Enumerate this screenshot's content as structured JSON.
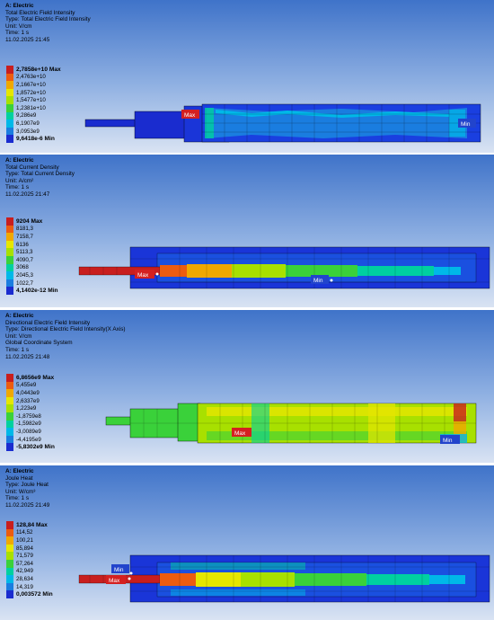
{
  "panels": [
    {
      "title": "A: Electric",
      "lines": [
        "Total Electric Field Intensity",
        "Type: Total Electric Field Intensity",
        "Unit: V/cm",
        "Time: 1 s",
        "11.02.2025 21:45"
      ],
      "legend": [
        "2,7858e+10 Max",
        "2,4763e+10",
        "2,1667e+10",
        "1,8572e+10",
        "1,5477e+10",
        "1,2381e+10",
        "9,286e9",
        "6,1907e9",
        "3,0953e9",
        "9,6418e-6 Min"
      ],
      "max_label": "Max",
      "min_label": "Min"
    },
    {
      "title": "A: Electric",
      "lines": [
        "Total Current Density",
        "Type: Total Current Density",
        "Unit: A/cm²",
        "Time: 1 s",
        "11.02.2025 21:47"
      ],
      "legend": [
        "9204 Max",
        "8181,3",
        "7158,7",
        "6136",
        "5113,3",
        "4090,7",
        "3068",
        "2045,3",
        "1022,7",
        "4,1402e-12 Min"
      ],
      "max_label": "Max",
      "min_label": "Min"
    },
    {
      "title": "A: Electric",
      "lines": [
        "Directional Electric Field Intensity",
        "Type: Directional Electric Field Intensity(X Axis)",
        "Unit: V/cm",
        "Global Coordinate System",
        "Time: 1 s",
        "11.02.2025 21:48"
      ],
      "legend": [
        "6,8656e9 Max",
        "5,455e9",
        "4,0443e9",
        "2,6337e9",
        "1,223e9",
        "-1,8759e8",
        "-1,5982e9",
        "-3,0089e9",
        "-4,4195e9",
        "-5,8302e9 Min"
      ],
      "max_label": "Max",
      "min_label": "Min"
    },
    {
      "title": "A: Electric",
      "lines": [
        "Joule Heat",
        "Type: Joule Heat",
        "Unit: W/cm³",
        "Time: 1 s",
        "11.02.2025 21:49"
      ],
      "legend": [
        "128,84 Max",
        "114,52",
        "100,21",
        "85,894",
        "71,579",
        "57,264",
        "42,949",
        "28,634",
        "14,319",
        "0,003572 Min"
      ],
      "max_label": "Max",
      "min_label": "Min"
    }
  ],
  "colors": {
    "scale": [
      "#c81e1e",
      "#ec5c10",
      "#f0a800",
      "#e6e600",
      "#a8e000",
      "#3ad13a",
      "#00d0a0",
      "#00b8e8",
      "#1a7de0",
      "#1a2ccf"
    ],
    "max_tag": "#d42020",
    "min_tag": "#2244cc"
  }
}
